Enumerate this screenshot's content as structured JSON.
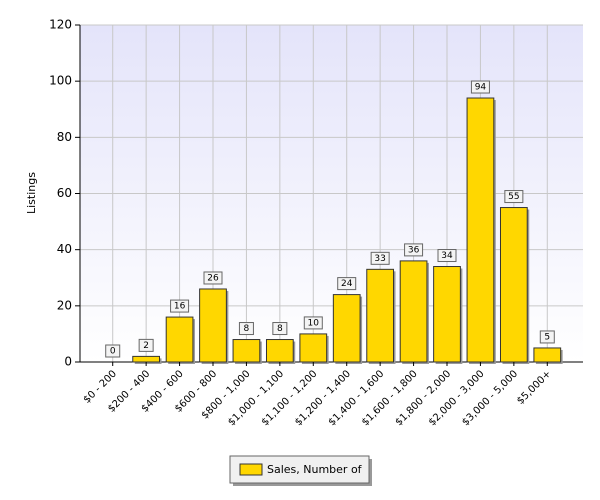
{
  "chart_data": {
    "type": "bar",
    "y_label": "Listings",
    "categories": [
      "$0 - 200",
      "$200 - 400",
      "$400 - 600",
      "$600 - 800",
      "$800 - 1,000",
      "$1,000 - 1,100",
      "$1,100 - 1,200",
      "$1,200 - 1,400",
      "$1,400 - 1,600",
      "$1,600 - 1,800",
      "$1,800 - 2,000",
      "$2,000 - 3,000",
      "$3,000 - 5,000",
      "$5,000+"
    ],
    "series": [
      {
        "name": "Sales, Number of",
        "color": "#ffd700",
        "values": [
          0,
          2,
          16,
          26,
          8,
          8,
          10,
          24,
          33,
          36,
          34,
          94,
          55,
          5
        ]
      }
    ],
    "ylim": [
      0,
      120
    ],
    "yticks": [
      0,
      20,
      40,
      60,
      80,
      100,
      120
    ],
    "grid": true,
    "legend": "bottom"
  }
}
